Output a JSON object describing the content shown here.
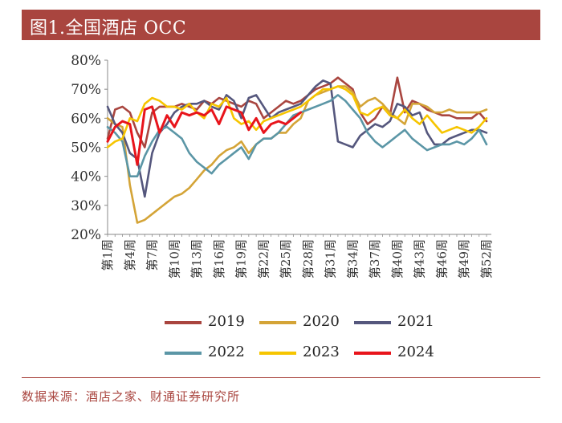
{
  "header": {
    "title": "图1.全国酒店 OCC"
  },
  "footer": {
    "source": "数据来源：酒店之家、财通证券研究所"
  },
  "chart_data": {
    "type": "line",
    "title": "图1.全国酒店 OCC",
    "xlabel": "",
    "ylabel": "",
    "ylim": [
      0.2,
      0.8
    ],
    "yticks": [
      "20%",
      "30%",
      "40%",
      "50%",
      "60%",
      "70%",
      "80%"
    ],
    "ytick_values": [
      0.2,
      0.3,
      0.4,
      0.5,
      0.6,
      0.7,
      0.8
    ],
    "categories": [
      "第1周",
      "第4周",
      "第7周",
      "第10周",
      "第13周",
      "第16周",
      "第19周",
      "第22周",
      "第25周",
      "第28周",
      "第31周",
      "第34周",
      "第37周",
      "第40周",
      "第43周",
      "第46周",
      "第49周",
      "第52周"
    ],
    "category_weeks": [
      1,
      4,
      7,
      10,
      13,
      16,
      19,
      22,
      25,
      28,
      31,
      34,
      37,
      40,
      43,
      46,
      49,
      52
    ],
    "legend_position": "bottom",
    "grid": false,
    "series": [
      {
        "name": "2019",
        "color": "#a9453f",
        "x": [
          1,
          2,
          3,
          4,
          5,
          6,
          7,
          8,
          9,
          10,
          11,
          12,
          13,
          14,
          15,
          16,
          17,
          18,
          19,
          20,
          21,
          22,
          23,
          24,
          25,
          26,
          27,
          28,
          29,
          30,
          31,
          32,
          33,
          34,
          35,
          36,
          37,
          38,
          39,
          40,
          41,
          42,
          43,
          44,
          45,
          46,
          47,
          48,
          49,
          50,
          51,
          52
        ],
        "values": [
          0.53,
          0.63,
          0.64,
          0.62,
          0.55,
          0.5,
          0.62,
          0.64,
          0.64,
          0.64,
          0.65,
          0.64,
          0.63,
          0.66,
          0.65,
          0.67,
          0.66,
          0.65,
          0.64,
          0.66,
          0.65,
          0.6,
          0.62,
          0.64,
          0.66,
          0.65,
          0.66,
          0.68,
          0.7,
          0.71,
          0.72,
          0.74,
          0.72,
          0.7,
          0.62,
          0.58,
          0.6,
          0.64,
          0.61,
          0.74,
          0.62,
          0.66,
          0.65,
          0.63,
          0.62,
          0.61,
          0.61,
          0.6,
          0.6,
          0.6,
          0.62,
          0.59
        ]
      },
      {
        "name": "2020",
        "color": "#d4a437",
        "x": [
          1,
          2,
          3,
          4,
          5,
          6,
          7,
          8,
          9,
          10,
          11,
          12,
          13,
          14,
          15,
          16,
          17,
          18,
          19,
          20,
          21,
          22,
          23,
          24,
          25,
          26,
          27,
          28,
          29,
          30,
          31,
          32,
          33,
          34,
          35,
          36,
          37,
          38,
          39,
          40,
          41,
          42,
          43,
          44,
          45,
          46,
          47,
          48,
          49,
          50,
          51,
          52
        ],
        "values": [
          0.6,
          0.58,
          0.57,
          0.37,
          0.24,
          0.25,
          0.27,
          0.29,
          0.31,
          0.33,
          0.34,
          0.36,
          0.39,
          0.42,
          0.44,
          0.47,
          0.49,
          0.5,
          0.52,
          0.48,
          0.51,
          0.53,
          0.53,
          0.55,
          0.55,
          0.58,
          0.6,
          0.66,
          0.68,
          0.69,
          0.7,
          0.71,
          0.71,
          0.69,
          0.64,
          0.66,
          0.67,
          0.65,
          0.62,
          0.6,
          0.58,
          0.65,
          0.65,
          0.64,
          0.62,
          0.62,
          0.63,
          0.62,
          0.62,
          0.62,
          0.62,
          0.63
        ]
      },
      {
        "name": "2021",
        "color": "#55577d",
        "x": [
          1,
          2,
          3,
          4,
          5,
          6,
          7,
          8,
          9,
          10,
          11,
          12,
          13,
          14,
          15,
          16,
          17,
          18,
          19,
          20,
          21,
          22,
          23,
          24,
          25,
          26,
          27,
          28,
          29,
          30,
          31,
          32,
          33,
          34,
          35,
          36,
          37,
          38,
          39,
          40,
          41,
          42,
          43,
          44,
          45,
          46,
          47,
          48,
          49,
          50,
          51,
          52
        ],
        "values": [
          0.64,
          0.58,
          0.55,
          0.48,
          0.46,
          0.33,
          0.48,
          0.55,
          0.58,
          0.62,
          0.64,
          0.65,
          0.65,
          0.66,
          0.64,
          0.63,
          0.68,
          0.66,
          0.6,
          0.67,
          0.68,
          0.64,
          0.6,
          0.62,
          0.63,
          0.64,
          0.65,
          0.68,
          0.71,
          0.73,
          0.72,
          0.52,
          0.51,
          0.5,
          0.54,
          0.56,
          0.58,
          0.57,
          0.59,
          0.65,
          0.64,
          0.61,
          0.62,
          0.55,
          0.51,
          0.51,
          0.53,
          0.54,
          0.55,
          0.56,
          0.56,
          0.55
        ]
      },
      {
        "name": "2022",
        "color": "#5b96a6",
        "x": [
          1,
          2,
          3,
          4,
          5,
          6,
          7,
          8,
          9,
          10,
          11,
          12,
          13,
          14,
          15,
          16,
          17,
          18,
          19,
          20,
          21,
          22,
          23,
          24,
          25,
          26,
          27,
          28,
          29,
          30,
          31,
          32,
          33,
          34,
          35,
          36,
          37,
          38,
          39,
          40,
          41,
          42,
          43,
          44,
          45,
          46,
          47,
          48,
          49,
          50,
          51,
          52
        ],
        "values": [
          0.57,
          0.55,
          0.52,
          0.4,
          0.4,
          0.47,
          0.52,
          0.56,
          0.57,
          0.55,
          0.53,
          0.48,
          0.45,
          0.43,
          0.41,
          0.44,
          0.46,
          0.48,
          0.5,
          0.46,
          0.51,
          0.53,
          0.53,
          0.55,
          0.58,
          0.61,
          0.62,
          0.63,
          0.64,
          0.65,
          0.66,
          0.68,
          0.66,
          0.63,
          0.6,
          0.55,
          0.52,
          0.5,
          0.52,
          0.54,
          0.56,
          0.53,
          0.51,
          0.49,
          0.5,
          0.51,
          0.51,
          0.52,
          0.51,
          0.53,
          0.56,
          0.51
        ]
      },
      {
        "name": "2023",
        "color": "#f6c500",
        "x": [
          1,
          2,
          3,
          4,
          5,
          6,
          7,
          8,
          9,
          10,
          11,
          12,
          13,
          14,
          15,
          16,
          17,
          18,
          19,
          20,
          21,
          22,
          23,
          24,
          25,
          26,
          27,
          28,
          29,
          30,
          31,
          32,
          33,
          34,
          35,
          36,
          37,
          38,
          39,
          40,
          41,
          42,
          43,
          44,
          45,
          46,
          47,
          48,
          49,
          50,
          51,
          52
        ],
        "values": [
          0.5,
          0.52,
          0.53,
          0.6,
          0.59,
          0.65,
          0.67,
          0.66,
          0.64,
          0.64,
          0.63,
          0.65,
          0.62,
          0.6,
          0.65,
          0.64,
          0.67,
          0.6,
          0.58,
          0.59,
          0.56,
          0.59,
          0.6,
          0.61,
          0.62,
          0.63,
          0.64,
          0.66,
          0.68,
          0.7,
          0.7,
          0.71,
          0.7,
          0.68,
          0.62,
          0.61,
          0.63,
          0.64,
          0.61,
          0.6,
          0.63,
          0.6,
          0.58,
          0.61,
          0.58,
          0.55,
          0.56,
          0.57,
          0.56,
          0.55,
          0.57,
          0.6
        ]
      },
      {
        "name": "2024",
        "color": "#e8141b",
        "x": [
          1,
          2,
          3,
          4,
          5,
          6,
          7,
          8,
          9,
          10,
          11,
          12,
          13,
          14,
          15,
          16,
          17,
          18,
          19,
          20,
          21,
          22,
          23,
          24,
          25,
          26,
          27
        ],
        "values": [
          0.52,
          0.57,
          0.59,
          0.58,
          0.44,
          0.63,
          0.64,
          0.55,
          0.61,
          0.57,
          0.62,
          0.61,
          0.62,
          0.61,
          0.63,
          0.58,
          0.64,
          0.63,
          0.62,
          0.56,
          0.6,
          0.55,
          0.58,
          0.59,
          0.58,
          0.6,
          0.62
        ]
      }
    ]
  }
}
